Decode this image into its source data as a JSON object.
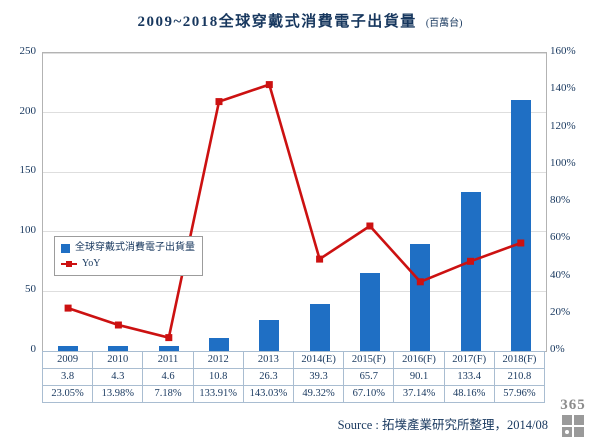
{
  "title": {
    "main": "2009~2018全球穿戴式消費電子出貨量",
    "unit": "(百萬台)"
  },
  "legend": {
    "bar_label": "全球穿戴式消費電子出貨量",
    "line_label": "YoY"
  },
  "source": "Source : 拓墣產業研究所整理，2014/08",
  "watermark": "365",
  "chart_data": {
    "type": "bar+line combo",
    "title": "2009~2018全球穿戴式消費電子出貨量 (百萬台)",
    "categories": [
      "2009",
      "2010",
      "2011",
      "2012",
      "2013",
      "2014(E)",
      "2015(F)",
      "2016(F)",
      "2017(F)",
      "2018(F)"
    ],
    "series": [
      {
        "name": "全球穿戴式消費電子出貨量",
        "type": "bar",
        "axis": "left",
        "values": [
          3.8,
          4.3,
          4.6,
          10.8,
          26.3,
          39.3,
          65.7,
          90.1,
          133.4,
          210.8
        ]
      },
      {
        "name": "YoY",
        "type": "line",
        "axis": "right",
        "unit": "%",
        "values": [
          23.05,
          13.98,
          7.18,
          133.91,
          143.03,
          49.32,
          67.1,
          37.14,
          48.16,
          57.96
        ]
      }
    ],
    "left_axis": {
      "min": 0,
      "max": 250,
      "ticks": [
        0,
        50,
        100,
        150,
        200,
        250
      ]
    },
    "right_axis": {
      "min": 0,
      "max": 160,
      "ticks": [
        "0%",
        "20%",
        "40%",
        "60%",
        "80%",
        "100%",
        "120%",
        "140%",
        "160%"
      ]
    },
    "table_rows": {
      "values": [
        "3.8",
        "4.3",
        "4.6",
        "10.8",
        "26.3",
        "39.3",
        "65.7",
        "90.1",
        "133.4",
        "210.8"
      ],
      "yoy": [
        "23.05%",
        "13.98%",
        "7.18%",
        "133.91%",
        "143.03%",
        "49.32%",
        "67.10%",
        "37.14%",
        "48.16%",
        "57.96%"
      ]
    },
    "grid": true,
    "legend_position": "inside-left",
    "colors": {
      "bar": "#1f6fc4",
      "line": "#cc1111"
    }
  }
}
